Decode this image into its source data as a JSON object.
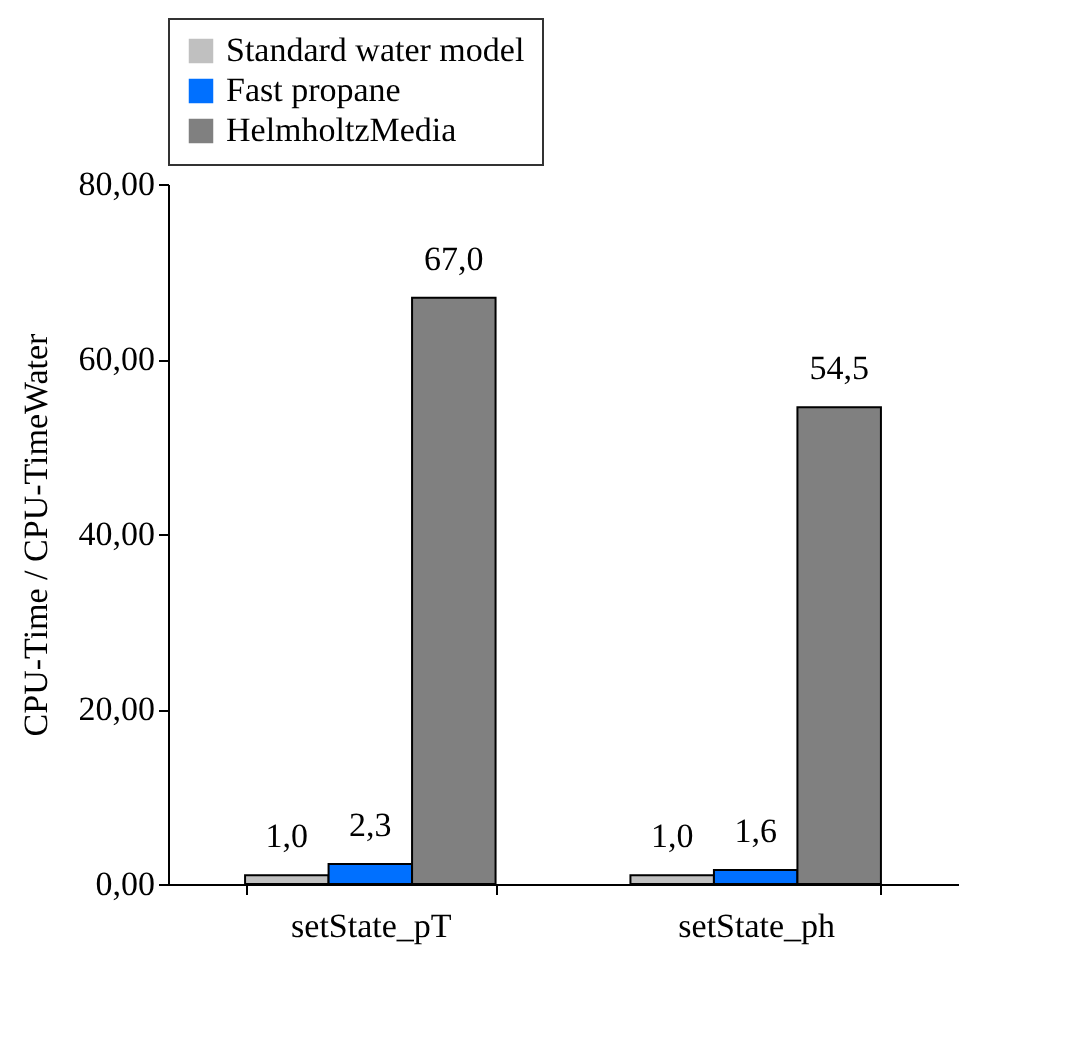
{
  "chart_data": {
    "type": "bar",
    "ylabel": "CPU-Time / CPU-TimeWater",
    "categories": [
      "setState_pT",
      "setState_ph"
    ],
    "series": [
      {
        "name": "Standard water model",
        "color": "#c0c0c0",
        "values": [
          1.0,
          1.0
        ],
        "value_labels": [
          "1,0",
          "1,0"
        ]
      },
      {
        "name": "Fast propane",
        "color": "#0070ff",
        "values": [
          2.3,
          1.6
        ],
        "value_labels": [
          "2,3",
          "1,6"
        ]
      },
      {
        "name": "HelmholtzMedia",
        "color": "#808080",
        "values": [
          67.0,
          54.5
        ],
        "value_labels": [
          "67,0",
          "54,5"
        ]
      }
    ],
    "ylim": [
      0,
      80
    ],
    "yticks": [
      {
        "value": 0,
        "label": "0,00"
      },
      {
        "value": 20,
        "label": "20,00"
      },
      {
        "value": 40,
        "label": "40,00"
      },
      {
        "value": 60,
        "label": "60,00"
      },
      {
        "value": 80,
        "label": "80,00"
      }
    ],
    "grid": false,
    "legend": "top"
  }
}
